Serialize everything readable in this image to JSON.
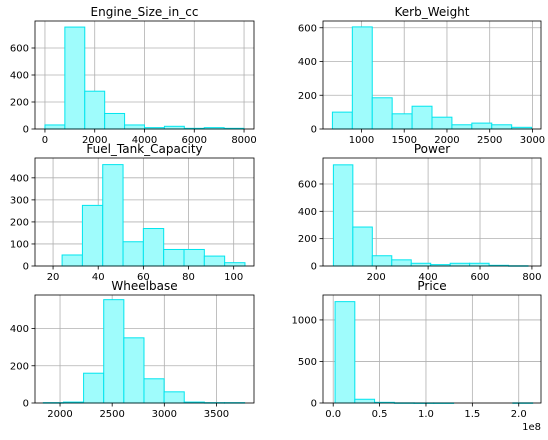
{
  "figure": {
    "bar_fill": "#9ffcfc",
    "bar_edge": "#00e5ee",
    "grid_color": "#b0b0b0",
    "axis_color": "#000000"
  },
  "chart_data": [
    {
      "type": "bar",
      "title": "Engine_Size_in_cc",
      "xlim": [
        -400,
        8400
      ],
      "ylim": [
        0,
        800
      ],
      "xticks": [
        0,
        2000,
        4000,
        6000,
        8000
      ],
      "xtick_labels": [
        "0",
        "2000",
        "4000",
        "6000",
        "8000"
      ],
      "yticks": [
        0,
        200,
        400,
        600
      ],
      "ytick_labels": [
        "0",
        "200",
        "400",
        "600"
      ],
      "bin_edges": [
        0,
        800,
        1600,
        2400,
        3200,
        4000,
        4800,
        5600,
        6400,
        7200,
        8000
      ],
      "values": [
        30,
        755,
        280,
        115,
        30,
        10,
        20,
        5,
        10,
        5
      ],
      "offset_text": ""
    },
    {
      "type": "bar",
      "title": "Kerb_Weight",
      "xlim": [
        550,
        3100
      ],
      "ylim": [
        0,
        640
      ],
      "xticks": [
        1000,
        1500,
        2000,
        2500,
        3000
      ],
      "xtick_labels": [
        "1000",
        "1500",
        "2000",
        "2500",
        "3000"
      ],
      "yticks": [
        0,
        200,
        400,
        600
      ],
      "ytick_labels": [
        "0",
        "200",
        "400",
        "600"
      ],
      "bin_edges": [
        660,
        893,
        1126,
        1359,
        1592,
        1825,
        2058,
        2291,
        2524,
        2757,
        2990
      ],
      "values": [
        100,
        605,
        185,
        90,
        135,
        70,
        25,
        35,
        25,
        10
      ],
      "offset_text": ""
    },
    {
      "type": "bar",
      "title": "Fuel_Tank_Capacity",
      "xlim": [
        12,
        109
      ],
      "ylim": [
        0,
        490
      ],
      "xticks": [
        20,
        40,
        60,
        80,
        100
      ],
      "xtick_labels": [
        "20",
        "40",
        "60",
        "80",
        "100"
      ],
      "yticks": [
        0,
        100,
        200,
        300,
        400
      ],
      "ytick_labels": [
        "0",
        "100",
        "200",
        "300",
        "400"
      ],
      "bin_edges": [
        15,
        24,
        33,
        42,
        51,
        60,
        69,
        78,
        87,
        96,
        105
      ],
      "values": [
        0,
        50,
        275,
        460,
        110,
        170,
        75,
        75,
        45,
        15
      ],
      "offset_text": ""
    },
    {
      "type": "bar",
      "title": "Power",
      "xlim": [
        -5,
        835
      ],
      "ylim": [
        0,
        790
      ],
      "xticks": [
        200,
        400,
        600,
        800
      ],
      "xtick_labels": [
        "200",
        "400",
        "600",
        "800"
      ],
      "yticks": [
        0,
        200,
        400,
        600
      ],
      "ytick_labels": [
        "0",
        "200",
        "400",
        "600"
      ],
      "bin_edges": [
        35,
        110,
        185,
        260,
        335,
        410,
        485,
        560,
        635,
        710,
        785
      ],
      "values": [
        740,
        285,
        75,
        45,
        20,
        10,
        20,
        20,
        5,
        2
      ],
      "offset_text": ""
    },
    {
      "type": "bar",
      "title": "Wheelbase",
      "xlim": [
        1760,
        3860
      ],
      "ylim": [
        0,
        580
      ],
      "xticks": [
        2000,
        2500,
        3000,
        3500
      ],
      "xtick_labels": [
        "2000",
        "2500",
        "3000",
        "3500"
      ],
      "yticks": [
        0,
        200,
        400
      ],
      "ytick_labels": [
        "0",
        "200",
        "400"
      ],
      "bin_edges": [
        1840,
        2033,
        2226,
        2419,
        2612,
        2805,
        2998,
        3191,
        3384,
        3577,
        3770
      ],
      "values": [
        2,
        5,
        160,
        555,
        350,
        130,
        60,
        5,
        2,
        2
      ],
      "offset_text": ""
    },
    {
      "type": "bar",
      "title": "Price",
      "xlim": [
        -1.1,
        22.4
      ],
      "ylim": [
        0,
        1300
      ],
      "xticks": [
        0,
        5,
        10,
        15,
        20
      ],
      "xtick_labels": [
        "0.0",
        "0.5",
        "1.0",
        "1.5",
        "2.0"
      ],
      "yticks": [
        0,
        500,
        1000
      ],
      "ytick_labels": [
        "0",
        "500",
        "1000"
      ],
      "bin_edges": [
        0.2,
        2.33,
        4.46,
        6.59,
        8.72,
        10.85,
        12.98,
        15.11,
        17.24,
        19.37,
        21.5
      ],
      "values": [
        1220,
        45,
        8,
        2,
        1,
        1,
        0,
        0,
        0,
        2
      ],
      "offset_text": "1e8"
    }
  ]
}
